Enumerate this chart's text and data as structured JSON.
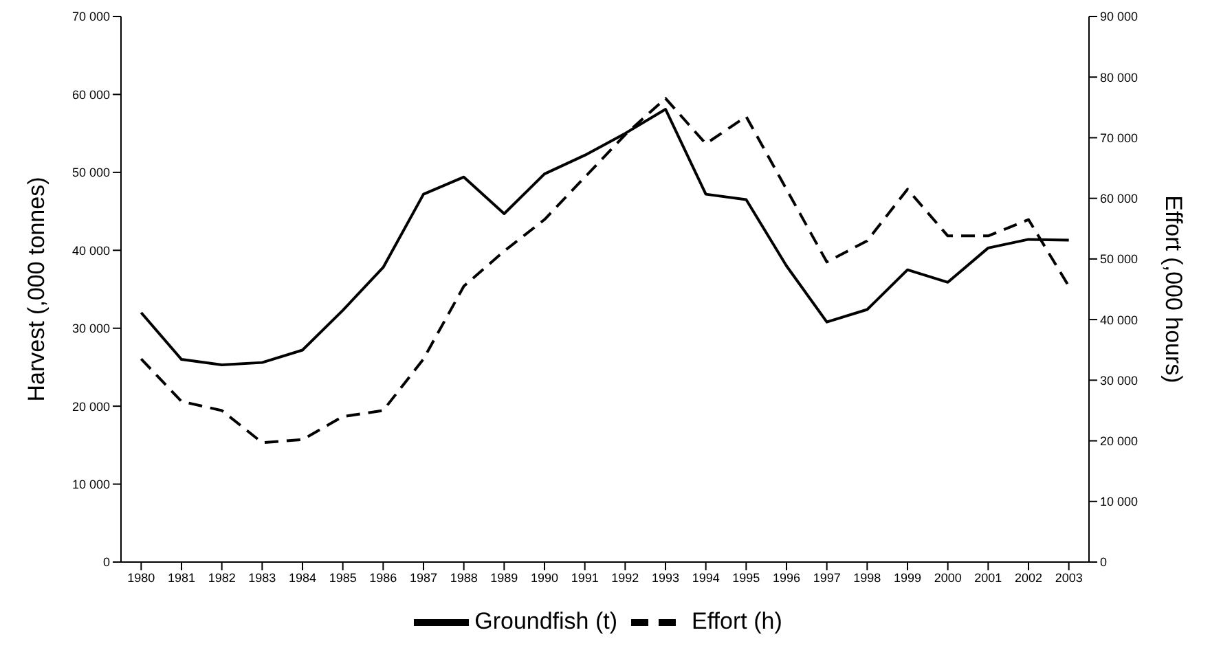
{
  "chart_data": {
    "type": "line",
    "ylabel": "Harvest (,000 tonnes)",
    "y2label": "Effort (,000 hours)",
    "categories": [
      "1980",
      "1981",
      "1982",
      "1983",
      "1984",
      "1985",
      "1986",
      "1987",
      "1988",
      "1989",
      "1990",
      "1991",
      "1992",
      "1993",
      "1994",
      "1995",
      "1996",
      "1997",
      "1998",
      "1999",
      "2000",
      "2001",
      "2002",
      "2003"
    ],
    "series": [
      {
        "name": "Groundfish (t)",
        "color": "#000000",
        "line_style": "solid",
        "values": [
          32000,
          26000,
          25300,
          25600,
          27200,
          32300,
          37800,
          47200,
          49400,
          44700,
          49800,
          52200,
          55000,
          58100,
          47200,
          46500,
          38000,
          30800,
          32400,
          37500,
          35900,
          40300,
          41400,
          41300
        ]
      },
      {
        "name": "Effort (h)",
        "color": "#000000",
        "line_style": "dashed",
        "axis": "y2",
        "values": [
          33500,
          26500,
          25000,
          19700,
          20200,
          24000,
          25000,
          33500,
          45500,
          51300,
          56500,
          63500,
          70500,
          76500,
          69000,
          73500,
          61500,
          49500,
          53000,
          61500,
          53800,
          53800,
          56500,
          45500
        ]
      }
    ],
    "ylim": [
      0,
      70000
    ],
    "yticks": [
      {
        "value": 0,
        "label": "0"
      },
      {
        "value": 10000,
        "label": "10 000"
      },
      {
        "value": 20000,
        "label": "20 000"
      },
      {
        "value": 30000,
        "label": "30 000"
      },
      {
        "value": 40000,
        "label": "40 000"
      },
      {
        "value": 50000,
        "label": "50 000"
      },
      {
        "value": 60000,
        "label": "60 000"
      },
      {
        "value": 70000,
        "label": "70 000"
      }
    ],
    "y2lim": [
      0,
      90000
    ],
    "y2ticks": [
      {
        "value": 0,
        "label": "0"
      },
      {
        "value": 10000,
        "label": "10 000"
      },
      {
        "value": 20000,
        "label": "20 000"
      },
      {
        "value": 30000,
        "label": "30 000"
      },
      {
        "value": 40000,
        "label": "40 000"
      },
      {
        "value": 50000,
        "label": "50 000"
      },
      {
        "value": 60000,
        "label": "60 000"
      },
      {
        "value": 70000,
        "label": "70 000"
      },
      {
        "value": 80000,
        "label": "80 000"
      },
      {
        "value": 90000,
        "label": "90 000"
      }
    ],
    "grid": false,
    "legend": "bottom",
    "marker": "none"
  }
}
